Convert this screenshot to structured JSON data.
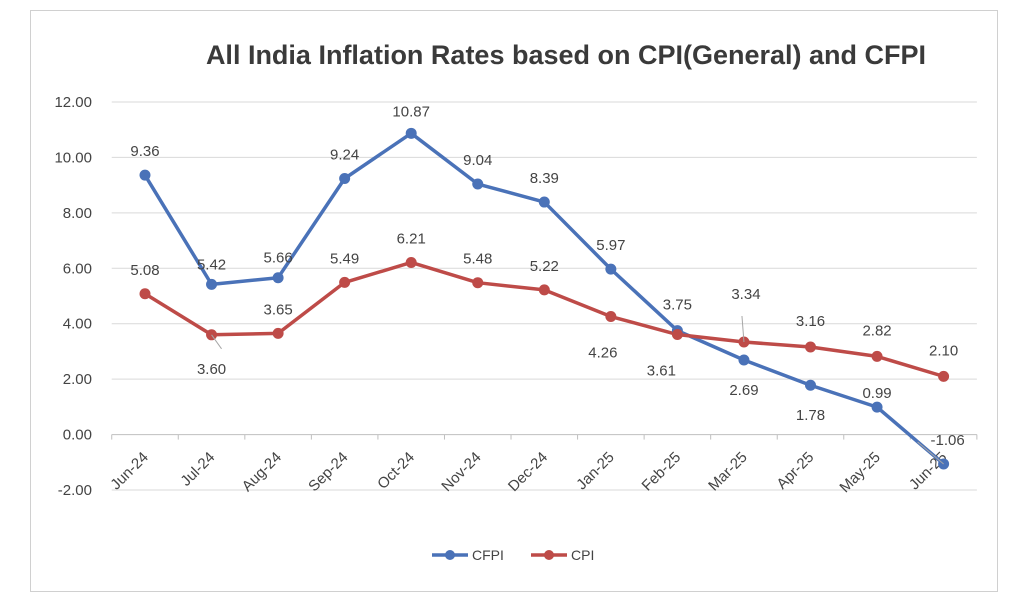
{
  "chart_data": {
    "type": "line",
    "title": "All India Inflation Rates based on CPI(General) and CFPI",
    "categories": [
      "Jun-24",
      "Jul-24",
      "Aug-24",
      "Sep-24",
      "Oct-24",
      "Nov-24",
      "Dec-24",
      "Jan-25",
      "Feb-25",
      "Mar-25",
      "Apr-25",
      "May-25",
      "Jun-25"
    ],
    "y_ticks": [
      "12.00",
      "10.00",
      "8.00",
      "6.00",
      "4.00",
      "2.00",
      "0.00",
      "-2.00"
    ],
    "ylim": [
      -2,
      12
    ],
    "grid": true,
    "legend_position": "bottom",
    "series": [
      {
        "name": "CFPI",
        "color": "#4A72B8",
        "values": [
          9.36,
          5.42,
          5.66,
          9.24,
          10.87,
          9.04,
          8.39,
          5.97,
          3.75,
          2.69,
          1.78,
          0.99,
          -1.06
        ],
        "labels": [
          "9.36",
          "5.42",
          "5.66",
          "9.24",
          "10.87",
          "9.04",
          "8.39",
          "5.97",
          "3.75",
          "2.69",
          "1.78",
          "0.99",
          "-1.06"
        ]
      },
      {
        "name": "CPI",
        "color": "#BE4B48",
        "values": [
          5.08,
          3.6,
          3.65,
          5.49,
          6.21,
          5.48,
          5.22,
          4.26,
          3.61,
          3.34,
          3.16,
          2.82,
          2.1
        ],
        "labels": [
          "5.08",
          "3.60",
          "3.65",
          "5.49",
          "6.21",
          "5.48",
          "5.22",
          "4.26",
          "3.61",
          "3.34",
          "3.16",
          "2.82",
          "2.10"
        ]
      }
    ]
  }
}
